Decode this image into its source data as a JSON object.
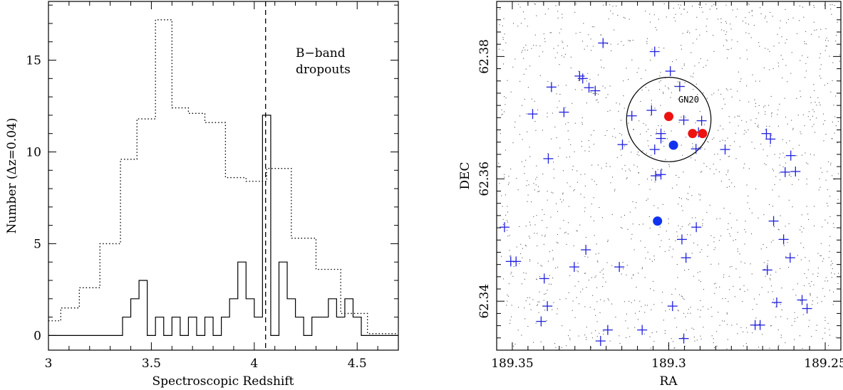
{
  "chart_data": [
    {
      "type": "histogram",
      "xlabel": "Spectroscopic Redshift",
      "ylabel": "Number (Δz=0.04)",
      "xlim": [
        3.0,
        4.7
      ],
      "ylim": [
        -0.8,
        18.2
      ],
      "xticks": [
        "3",
        "3.5",
        "4",
        "4.5"
      ],
      "xtick_values": [
        3.0,
        3.5,
        4.0,
        4.5
      ],
      "yticks": [
        "0",
        "5",
        "10",
        "15"
      ],
      "ytick_values": [
        0,
        5,
        10,
        15
      ],
      "annotation": [
        "B−band",
        "dropouts"
      ],
      "vline_x": 4.055,
      "series": [
        {
          "style": "dotted",
          "bin_edges": [
            3.0,
            3.06,
            3.15,
            3.25,
            3.35,
            3.43,
            3.52,
            3.6,
            3.68,
            3.76,
            3.86,
            3.96,
            4.06,
            4.18,
            4.3,
            4.42,
            4.55,
            4.65,
            4.7
          ],
          "values": [
            0.8,
            1.5,
            2.6,
            5.0,
            9.6,
            11.8,
            17.2,
            12.4,
            12.1,
            11.6,
            8.6,
            8.4,
            9.1,
            5.3,
            3.6,
            1.2,
            0.1,
            0.1
          ]
        },
        {
          "style": "solid",
          "bin_edges": [
            3.0,
            3.36,
            3.4,
            3.44,
            3.48,
            3.52,
            3.56,
            3.6,
            3.64,
            3.68,
            3.72,
            3.76,
            3.8,
            3.84,
            3.88,
            3.92,
            3.96,
            4.0,
            4.04,
            4.08,
            4.12,
            4.16,
            4.2,
            4.24,
            4.28,
            4.32,
            4.36,
            4.4,
            4.44,
            4.48,
            4.52,
            4.56,
            4.7
          ],
          "values": [
            0,
            1,
            2,
            3,
            0,
            1,
            0,
            1,
            0,
            1,
            0,
            1,
            0,
            1,
            2,
            4,
            2,
            1,
            12,
            0,
            4,
            2,
            1,
            0,
            1,
            1,
            2,
            1,
            2,
            1,
            0,
            0
          ]
        }
      ]
    },
    {
      "type": "scatter",
      "xlabel": "RA",
      "ylabel": "DEC",
      "xlim": [
        189.355,
        189.245
      ],
      "ylim": [
        62.332,
        62.389
      ],
      "xticks": [
        "189.35",
        "189.3",
        "189.25"
      ],
      "xtick_values": [
        189.35,
        189.3,
        189.25
      ],
      "yticks": [
        "62.34",
        "62.36",
        "62.38"
      ],
      "ytick_values": [
        62.34,
        62.36,
        62.38
      ],
      "circle": {
        "ra": 189.3,
        "dec": 62.3697,
        "radius_ra": 0.0135
      },
      "circle_label": "GN20",
      "series": [
        {
          "name": "",
          "marker": "plus",
          "color": "#2222dd",
          "points": [
            [
              189.321,
              62.3822
            ],
            [
              189.3045,
              62.3808
            ],
            [
              189.2995,
              62.3776
            ],
            [
              189.3285,
              62.3768
            ],
            [
              189.3275,
              62.3764
            ],
            [
              189.3375,
              62.375
            ],
            [
              189.3255,
              62.3749
            ],
            [
              189.3235,
              62.3744
            ],
            [
              189.2965,
              62.3751
            ],
            [
              189.3055,
              62.3712
            ],
            [
              189.3435,
              62.3706
            ],
            [
              189.3335,
              62.3709
            ],
            [
              189.3118,
              62.3703
            ],
            [
              189.2952,
              62.3696
            ],
            [
              189.2895,
              62.3695
            ],
            [
              189.2905,
              62.3676
            ],
            [
              189.3025,
              62.3666
            ],
            [
              189.3045,
              62.3648
            ],
            [
              189.2913,
              62.3649
            ],
            [
              189.3042,
              62.3605
            ],
            [
              189.3148,
              62.3656
            ],
            [
              189.3025,
              62.3674
            ],
            [
              189.3385,
              62.3633
            ],
            [
              189.282,
              62.3648
            ],
            [
              189.2688,
              62.3674
            ],
            [
              189.2675,
              62.3665
            ],
            [
              189.261,
              62.3638
            ],
            [
              189.2628,
              62.3611
            ],
            [
              189.2595,
              62.3612
            ],
            [
              189.3025,
              62.3607
            ],
            [
              189.3525,
              62.3521
            ],
            [
              189.3505,
              62.3465
            ],
            [
              189.3488,
              62.3465
            ],
            [
              189.3398,
              62.3437
            ],
            [
              189.3265,
              62.3484
            ],
            [
              189.3302,
              62.3456
            ],
            [
              189.3158,
              62.3456
            ],
            [
              189.2958,
              62.3501
            ],
            [
              189.2912,
              62.3521
            ],
            [
              189.2945,
              62.3471
            ],
            [
              189.2665,
              62.3531
            ],
            [
              189.2633,
              62.3501
            ],
            [
              189.2612,
              62.3471
            ],
            [
              189.2685,
              62.3451
            ],
            [
              189.2655,
              62.3398
            ],
            [
              189.2574,
              62.3402
            ],
            [
              189.2558,
              62.3388
            ],
            [
              189.3388,
              62.3392
            ],
            [
              189.3408,
              62.3367
            ],
            [
              189.3195,
              62.3353
            ],
            [
              189.3085,
              62.3353
            ],
            [
              189.2952,
              62.3339
            ],
            [
              189.2988,
              62.3392
            ],
            [
              189.2724,
              62.3361
            ],
            [
              189.2708,
              62.3361
            ],
            [
              189.3218,
              62.3335
            ]
          ]
        },
        {
          "name": "",
          "marker": "dot",
          "color": "#ee1111",
          "points": [
            [
              189.3,
              62.3702
            ],
            [
              189.2924,
              62.3674
            ],
            [
              189.2892,
              62.3674
            ]
          ]
        },
        {
          "name": "",
          "marker": "dot",
          "color": "#1133ee",
          "points": [
            [
              189.2985,
              62.3655
            ],
            [
              189.3036,
              62.3531
            ]
          ]
        }
      ]
    }
  ]
}
